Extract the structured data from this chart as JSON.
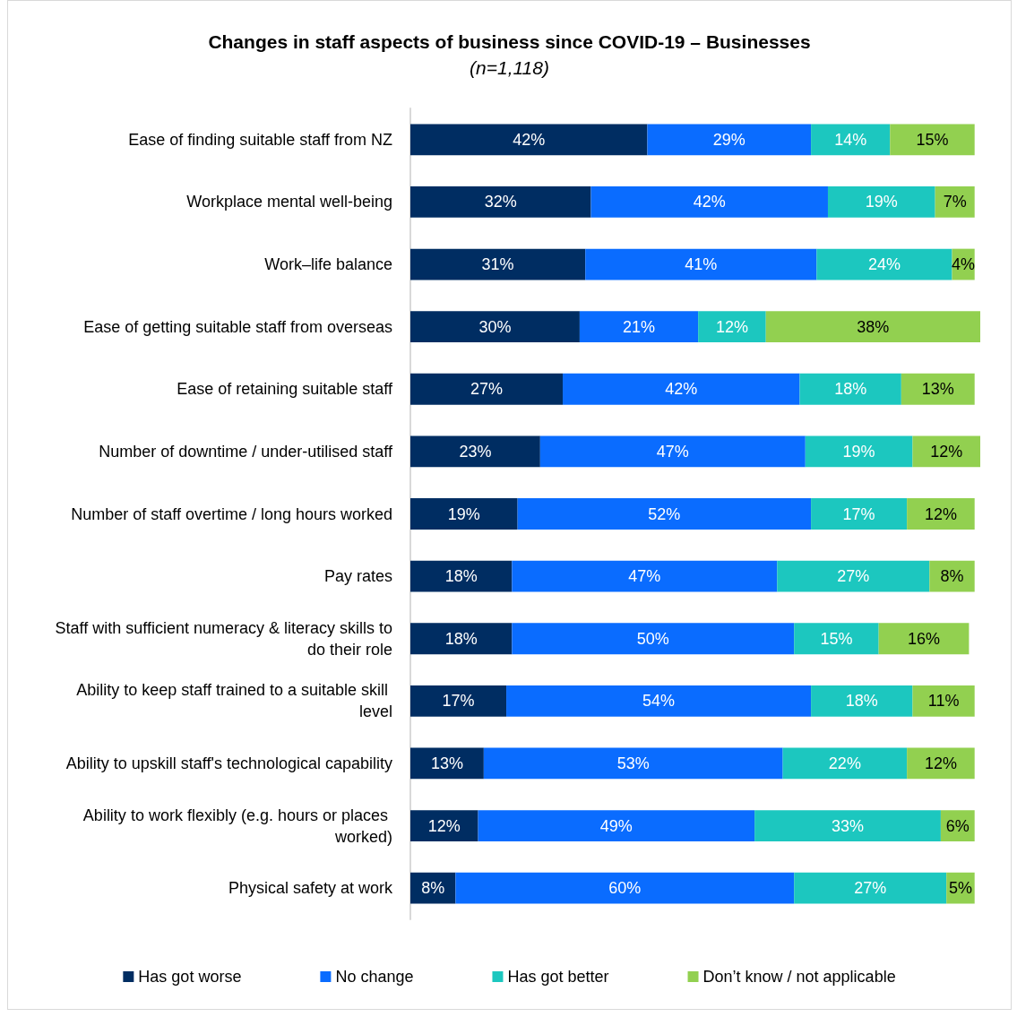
{
  "chart_data": {
    "type": "bar",
    "orientation": "horizontal",
    "stacked": true,
    "title": "Changes in staff aspects of business since COVID-19 – Businesses",
    "subtitle": "(n=1,118)",
    "categories": [
      "Ease of finding suitable staff from NZ",
      "Workplace mental well-being",
      "Work–life balance",
      "Ease of getting suitable staff from overseas",
      "Ease of retaining suitable staff",
      "Number of downtime / under-utilised staff",
      "Number of staff overtime / long hours worked",
      "Pay rates",
      "Staff with sufficient numeracy & literacy skills to do their role",
      "Ability to keep staff trained to a suitable skill level",
      "Ability to upskill staff's technological capability",
      "Ability to work flexibly (e.g. hours or places worked)",
      "Physical safety at work"
    ],
    "series": [
      {
        "name": "Has got worse",
        "color": "#002d62",
        "values": [
          42,
          32,
          31,
          30,
          27,
          23,
          19,
          18,
          18,
          17,
          13,
          12,
          8
        ],
        "value_labels": [
          "42%",
          "32%",
          "31%",
          "30%",
          "27%",
          "23%",
          "19%",
          "18%",
          "18%",
          "17%",
          "13%",
          "12%",
          "8%"
        ]
      },
      {
        "name": "No change",
        "color": "#0a6cff",
        "values": [
          29,
          42,
          41,
          21,
          42,
          47,
          52,
          47,
          50,
          54,
          53,
          49,
          60
        ],
        "value_labels": [
          "29%",
          "42%",
          "41%",
          "21%",
          "42%",
          "47%",
          "52%",
          "47%",
          "50%",
          "54%",
          "53%",
          "49%",
          "60%"
        ]
      },
      {
        "name": "Has got better",
        "color": "#1cc7bf",
        "values": [
          14,
          19,
          24,
          12,
          18,
          19,
          17,
          27,
          15,
          18,
          22,
          33,
          27
        ],
        "value_labels": [
          "14%",
          "19%",
          "24%",
          "12%",
          "18%",
          "19%",
          "17%",
          "27%",
          "15%",
          "18%",
          "22%",
          "33%",
          "27%"
        ]
      },
      {
        "name": "Don’t know / not applicable",
        "color": "#92d050",
        "values": [
          15,
          7,
          4,
          38,
          13,
          12,
          12,
          8,
          16,
          11,
          12,
          6,
          5
        ],
        "value_labels": [
          "15%",
          "7%",
          "4%",
          "38%",
          "13%",
          "12%",
          "12%",
          "8%",
          "16%",
          "11%",
          "12%",
          "6%",
          "5%"
        ]
      }
    ],
    "legend": "bottom",
    "tick_labels": "y"
  }
}
